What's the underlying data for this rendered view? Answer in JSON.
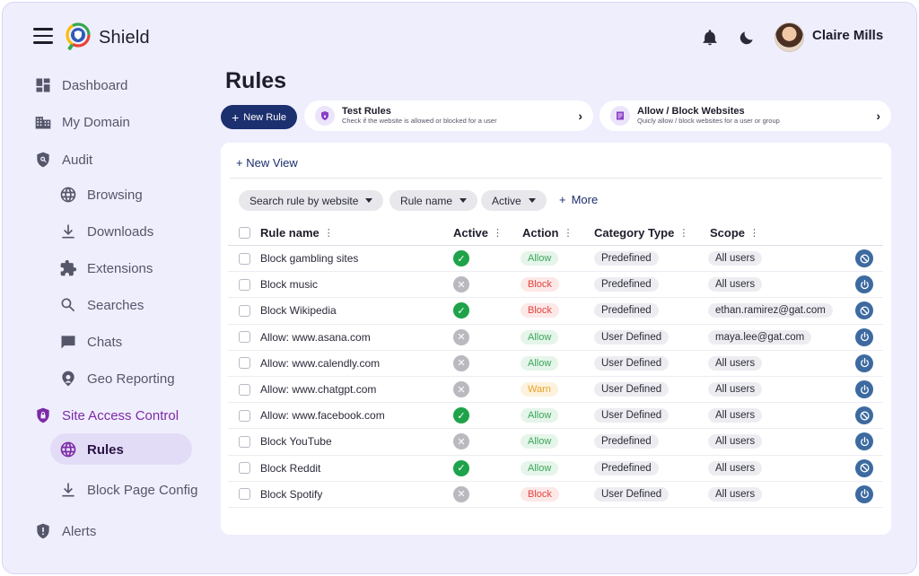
{
  "app": {
    "brand": "Shield"
  },
  "user": {
    "name": "Claire Mills"
  },
  "sidebar": {
    "items": [
      {
        "label": "Dashboard"
      },
      {
        "label": "My Domain"
      },
      {
        "label": "Audit"
      },
      {
        "label": "Browsing"
      },
      {
        "label": "Downloads"
      },
      {
        "label": "Extensions"
      },
      {
        "label": "Searches"
      },
      {
        "label": "Chats"
      },
      {
        "label": "Geo Reporting"
      },
      {
        "label": "Site Access Control"
      },
      {
        "label": "Rules"
      },
      {
        "label": "Block Page Config"
      },
      {
        "label": "Alerts"
      }
    ]
  },
  "page": {
    "title": "Rules"
  },
  "toolbar": {
    "new_rule_label": "New Rule",
    "test_rules": {
      "title": "Test Rules",
      "subtitle": "Check if the website is allowed or blocked for a user"
    },
    "allow_block": {
      "title": "Allow / Block Websites",
      "subtitle": "Quicly allow / block websites for a user or group"
    }
  },
  "panel": {
    "new_view_label": "+ New View",
    "filters": [
      "Search rule by website",
      "Rule name",
      "Active"
    ],
    "more_label": "More"
  },
  "table": {
    "columns": [
      "Rule name",
      "Active",
      "Action",
      "Category Type",
      "Scope"
    ],
    "rows": [
      {
        "name": "Block gambling sites",
        "active": true,
        "action": "Allow",
        "category": "Predefined",
        "scope": "All users",
        "control": "block"
      },
      {
        "name": "Block music",
        "active": false,
        "action": "Block",
        "category": "Predefined",
        "scope": "All users",
        "control": "power"
      },
      {
        "name": "Block Wikipedia",
        "active": true,
        "action": "Block",
        "category": "Predefined",
        "scope": "ethan.ramirez@gat.com",
        "control": "block"
      },
      {
        "name": "Allow: www.asana.com",
        "active": false,
        "action": "Allow",
        "category": "User Defined",
        "scope": "maya.lee@gat.com",
        "control": "power"
      },
      {
        "name": "Allow: www.calendly.com",
        "active": false,
        "action": "Allow",
        "category": "User Defined",
        "scope": "All users",
        "control": "power"
      },
      {
        "name": "Allow: www.chatgpt.com",
        "active": false,
        "action": "Warn",
        "category": "User Defined",
        "scope": "All users",
        "control": "power"
      },
      {
        "name": "Allow: www.facebook.com",
        "active": true,
        "action": "Allow",
        "category": "User Defined",
        "scope": "All users",
        "control": "block"
      },
      {
        "name": "Block YouTube",
        "active": false,
        "action": "Allow",
        "category": "Predefined",
        "scope": "All users",
        "control": "power"
      },
      {
        "name": "Block Reddit",
        "active": true,
        "action": "Allow",
        "category": "Predefined",
        "scope": "All users",
        "control": "block"
      },
      {
        "name": "Block Spotify",
        "active": false,
        "action": "Block",
        "category": "User Defined",
        "scope": "All users",
        "control": "power"
      }
    ]
  },
  "colors": {
    "accent": "#7d2aa6",
    "primary": "#1c2f6e",
    "active_green": "#1ea34a",
    "row_action": "#3d6aa0"
  }
}
